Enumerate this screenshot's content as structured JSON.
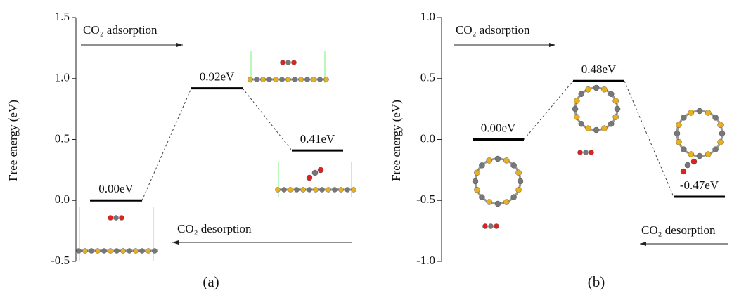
{
  "chart_data": [
    {
      "type": "energy",
      "ylabel": "Free energy (eV)",
      "panel_label": "(a)",
      "ylim": [
        -0.5,
        1.5
      ],
      "yticks": [
        -0.5,
        {
          "value": 0,
          "label": "0.0"
        },
        0.5,
        {
          "value": 1,
          "label": "1.0"
        },
        1.5
      ],
      "values": [
        0.0,
        0.92,
        0.41
      ],
      "value_labels": [
        "0.00eV",
        "0.92eV",
        "0.41eV"
      ],
      "annotations": [
        "CO₂ adsorption",
        "CO₂ desorption"
      ]
    },
    {
      "type": "energy",
      "ylabel": "Free energy (eV)",
      "panel_label": "(b)",
      "ylim": [
        -1.0,
        1.0
      ],
      "yticks": [
        {
          "value": -1,
          "label": "-1.0"
        },
        -0.5,
        {
          "value": 0,
          "label": "0.0"
        },
        0.5,
        {
          "value": 1,
          "label": "1.0"
        }
      ],
      "values": [
        0.0,
        0.48,
        -0.47
      ],
      "value_labels": [
        "0.00eV",
        "0.48eV",
        "-0.47eV"
      ],
      "annotations": [
        "CO₂ adsorption",
        "CO₂ desorption"
      ]
    }
  ]
}
